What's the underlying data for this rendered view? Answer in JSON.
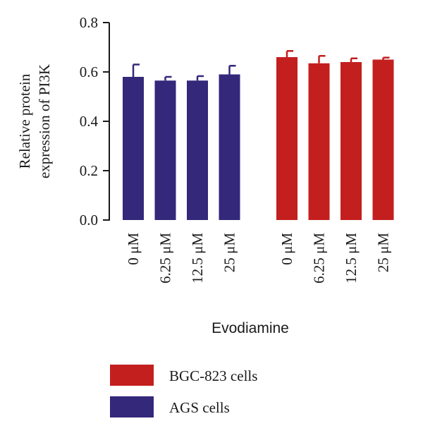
{
  "chart_data": {
    "type": "bar",
    "ylabel_lines": [
      "Relative protein",
      "expression of PI3K"
    ],
    "xlabel": "Evodiamine",
    "ylim": [
      0,
      0.8
    ],
    "yticks": [
      "0.0",
      "0.2",
      "0.4",
      "0.6",
      "0.8"
    ],
    "grid": false,
    "groups": [
      {
        "name": "AGS cells",
        "color": "#33287a",
        "categories": [
          "0 μM",
          "6.25 μM",
          "12.5 μM",
          "25 μM"
        ],
        "values": [
          0.58,
          0.565,
          0.565,
          0.59
        ],
        "errors": [
          0.05,
          0.015,
          0.018,
          0.035
        ]
      },
      {
        "name": "BGC-823 cells",
        "color": "#c41f1f",
        "categories": [
          "0 μM",
          "6.25 μM",
          "12.5 μM",
          "25 μM"
        ],
        "values": [
          0.66,
          0.635,
          0.64,
          0.65
        ],
        "errors": [
          0.025,
          0.03,
          0.015,
          0.008
        ]
      }
    ],
    "legend": {
      "placement": "bottom-center",
      "entries": [
        {
          "label": "BGC-823 cells",
          "color": "#c41f1f"
        },
        {
          "label": "AGS cells",
          "color": "#33287a"
        }
      ]
    }
  }
}
